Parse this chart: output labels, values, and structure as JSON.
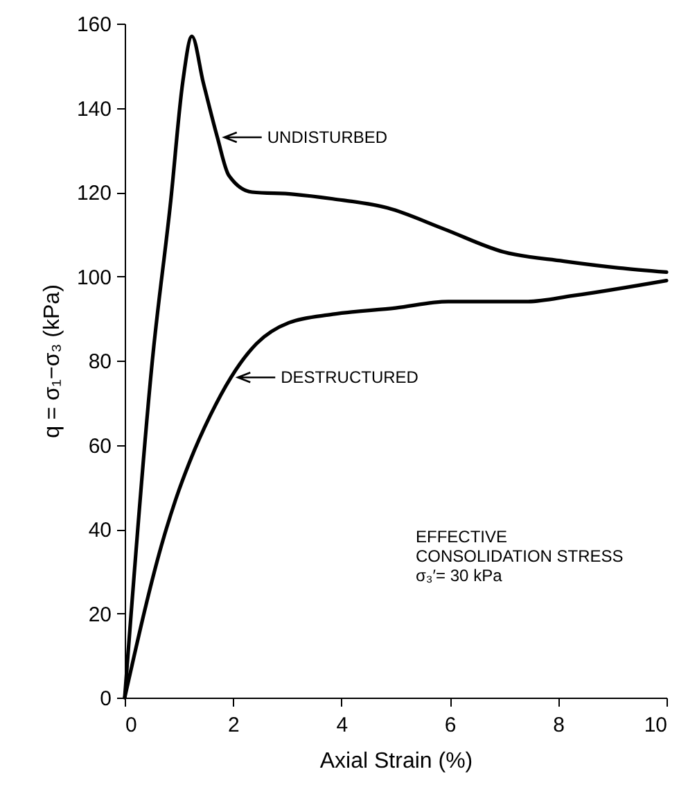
{
  "chart_data": {
    "type": "line",
    "xlabel": "Axial Strain (%)",
    "ylabel": "q = σ₁−σ₃ (kPa)",
    "xlim": [
      0,
      10
    ],
    "ylim": [
      0,
      160
    ],
    "xticks": [
      0,
      2,
      4,
      6,
      8,
      10
    ],
    "yticks": [
      0,
      20,
      40,
      60,
      80,
      100,
      120,
      140,
      160
    ],
    "grid": false,
    "marker": "none",
    "line_style": "solid",
    "series": [
      {
        "color": "#000000",
        "x": [
          0,
          0.51,
          0.85,
          1.07,
          1.24,
          1.45,
          1.71,
          1.92,
          2.35,
          3.11,
          3.84,
          4.86,
          5.88,
          6.99,
          8.1,
          9.12,
          10
        ],
        "values": [
          0,
          80,
          118,
          146,
          157,
          146,
          133,
          124,
          120,
          119.5,
          118.4,
          116.2,
          111.3,
          105.8,
          103.6,
          102,
          101
        ]
      },
      {
        "color": "#000000",
        "x": [
          0,
          0.72,
          0.94,
          1.2,
          1.58,
          1.96,
          2.43,
          3.03,
          3.84,
          5,
          5.97,
          7.42,
          8.27,
          10
        ],
        "values": [
          0,
          38,
          47,
          56,
          67,
          76,
          84,
          89,
          91,
          92.5,
          94,
          94,
          95.4,
          99
        ]
      }
    ],
    "annotations": [
      {
        "text": "UNDISTURBED",
        "x": 1.71,
        "y": 133
      },
      {
        "text": "DESTRUCTURED",
        "x": 1.96,
        "y": 76
      },
      "EFFECTIVE",
      "CONSOLIDATION STRESS",
      "σ₃′= 30 kPa"
    ]
  }
}
